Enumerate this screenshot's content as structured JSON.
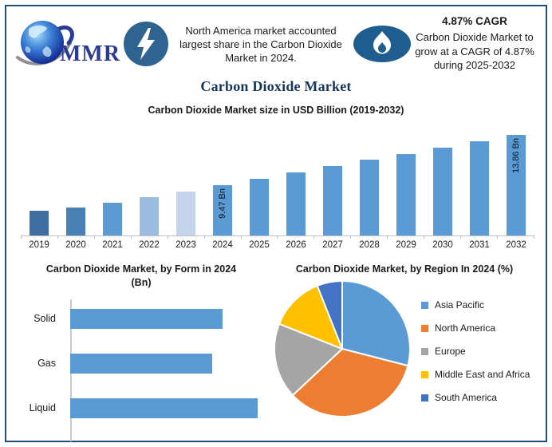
{
  "header": {
    "logo_text": "MMR",
    "headline": "North America market accounted largest share in the Carbon Dioxide Market in 2024.",
    "cagr_title": "4.87% CAGR",
    "cagr_body": "Carbon Dioxide Market to grow at a CAGR of 4.87% during 2025-2032"
  },
  "main_title": "Carbon Dioxide Market",
  "colors": {
    "frame_border": "#1f4e79",
    "title_navy": "#17365d",
    "accent_blue": "#5b9bd5",
    "lightning_circle": "#2e648f",
    "flame_circle": "#1f5d8e",
    "axis_gray": "#bfbfbf"
  },
  "chart_data": [
    {
      "type": "bar",
      "title": "Carbon Dioxide Market size in USD Billion (2019-2032)",
      "categories": [
        "2019",
        "2020",
        "2021",
        "2022",
        "2023",
        "2024",
        "2025",
        "2026",
        "2027",
        "2028",
        "2029",
        "2030",
        "2031",
        "2032"
      ],
      "values": [
        7.2,
        7.5,
        7.9,
        8.4,
        8.85,
        9.47,
        10.02,
        10.57,
        11.12,
        11.67,
        12.21,
        12.76,
        13.31,
        13.86
      ],
      "unit": "USD Bn",
      "ylabel": "",
      "ylim": [
        5,
        14.85
      ],
      "grid": false,
      "data_labels": {
        "2024": "9.47 Bn",
        "2032": "13.86 Bn"
      },
      "bar_colors": [
        "#3e6fa0",
        "#4a81b4",
        "#5b9ad2",
        "#9cbce0",
        "#c3d4ec",
        "#5b9bd5",
        "#5b9bd5",
        "#5b9bd5",
        "#5b9bd5",
        "#5b9bd5",
        "#5b9bd5",
        "#5b9bd5",
        "#5b9bd5",
        "#5b9bd5"
      ]
    },
    {
      "type": "bar",
      "orientation": "horizontal",
      "title": "Carbon Dioxide Market, by Form in 2024 (Bn)",
      "categories": [
        "Solid",
        "Gas",
        "Liquid"
      ],
      "values": [
        3.0,
        2.8,
        3.7
      ],
      "xlim": [
        0,
        3.9
      ],
      "grid": false,
      "bar_color": "#5b9bd5"
    },
    {
      "type": "pie",
      "title": "Carbon Dioxide Market, by Region In 2024 (%)",
      "labels": [
        "Asia Pacific",
        "North America",
        "Europe",
        "Middle East and Africa",
        "South America"
      ],
      "values": [
        29,
        34,
        18,
        13,
        6
      ],
      "colors": [
        "#5b9bd5",
        "#ed7d31",
        "#a5a5a5",
        "#ffc000",
        "#4472c4"
      ],
      "legend_position": "right",
      "start_angle_deg": 0,
      "direction": "clockwise"
    }
  ]
}
